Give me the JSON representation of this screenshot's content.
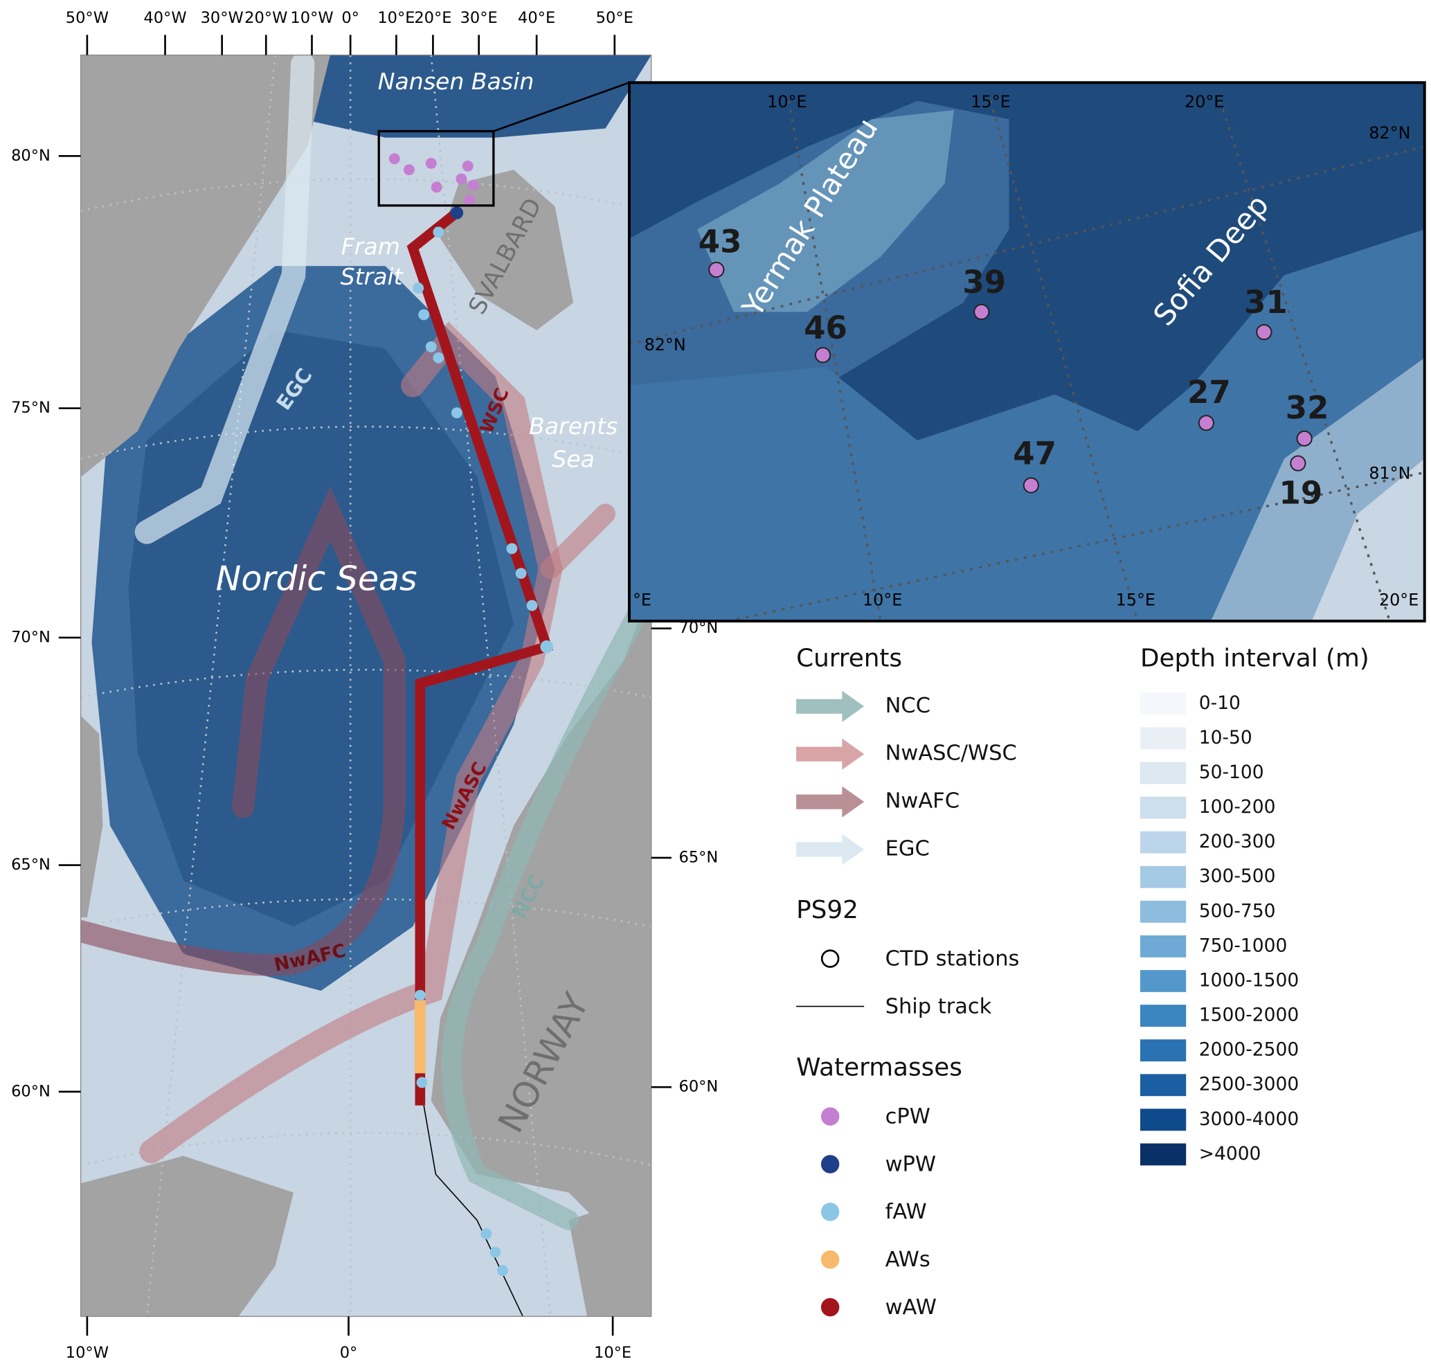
{
  "axes": {
    "top": [
      "50°W",
      "40°W",
      "30°W",
      "20°W",
      "10°W",
      "0°",
      "10°E",
      "20°E",
      "30°E",
      "40°E",
      "50°E"
    ],
    "bottom": [
      "10°W",
      "0°",
      "10°E"
    ],
    "left": [
      "80°N",
      "75°N",
      "70°N",
      "65°N",
      "60°N"
    ],
    "right": [
      "70°N",
      "65°N",
      "60°N"
    ]
  },
  "map_labels": {
    "nansen_basin": "Nansen Basin",
    "fram": "Fram",
    "strait": "Strait",
    "svalbard": "SVALBARD",
    "egc": "EGC",
    "wsc": "WSC",
    "barents": "Barents",
    "sea": "Sea",
    "nordic_seas": "Nordic Seas",
    "nwasc": "NwASC",
    "ncc": "NCC",
    "nwafc": "NwAFC",
    "norway": "NORWAY"
  },
  "inset": {
    "top_lon": [
      "10°E",
      "15°E",
      "20°E"
    ],
    "bottom_lon": [
      "°E",
      "10°E",
      "15°E",
      "20°E"
    ],
    "lat": [
      "82°N",
      "82°N",
      "81°N"
    ],
    "regions": [
      "Yermak Plateau",
      "Sofia Deep"
    ],
    "stations": [
      "43",
      "39",
      "46",
      "31",
      "27",
      "32",
      "47",
      "19"
    ]
  },
  "legend": {
    "currents_title": "Currents",
    "currents": [
      {
        "name": "NCC",
        "color": "#9fc0bf"
      },
      {
        "name": "NwASC/WSC",
        "color": "#d9a4a6"
      },
      {
        "name": "NwAFC",
        "color": "#b99096"
      },
      {
        "name": "EGC",
        "color": "#dce9f2"
      }
    ],
    "ps92_title": "PS92",
    "ps92": [
      "CTD stations",
      "Ship track"
    ],
    "watermasses_title": "Watermasses",
    "watermasses": [
      {
        "name": "cPW",
        "color": "#c57fd1"
      },
      {
        "name": "wPW",
        "color": "#1f3f8a"
      },
      {
        "name": "fAW",
        "color": "#8cc6e6"
      },
      {
        "name": "AWs",
        "color": "#f7b96b"
      },
      {
        "name": "wAW",
        "color": "#a3151c"
      }
    ],
    "depth_title": "Depth interval (m)",
    "depth": [
      {
        "name": "0-10",
        "color": "#f4f8fc"
      },
      {
        "name": "10-50",
        "color": "#e8f0f6"
      },
      {
        "name": "50-100",
        "color": "#dce8f2"
      },
      {
        "name": "100-200",
        "color": "#cddeed"
      },
      {
        "name": "200-300",
        "color": "#bcd5ea"
      },
      {
        "name": "300-500",
        "color": "#a5cae4"
      },
      {
        "name": "500-750",
        "color": "#8dbcde"
      },
      {
        "name": "750-1000",
        "color": "#6eaad5"
      },
      {
        "name": "1000-1500",
        "color": "#5498cb"
      },
      {
        "name": "1500-2000",
        "color": "#3b85c0"
      },
      {
        "name": "2000-2500",
        "color": "#2a72b2"
      },
      {
        "name": "2500-3000",
        "color": "#1c5ea2"
      },
      {
        "name": "3000-4000",
        "color": "#0f4a8c"
      },
      {
        "name": ">4000",
        "color": "#0a3068"
      }
    ]
  }
}
